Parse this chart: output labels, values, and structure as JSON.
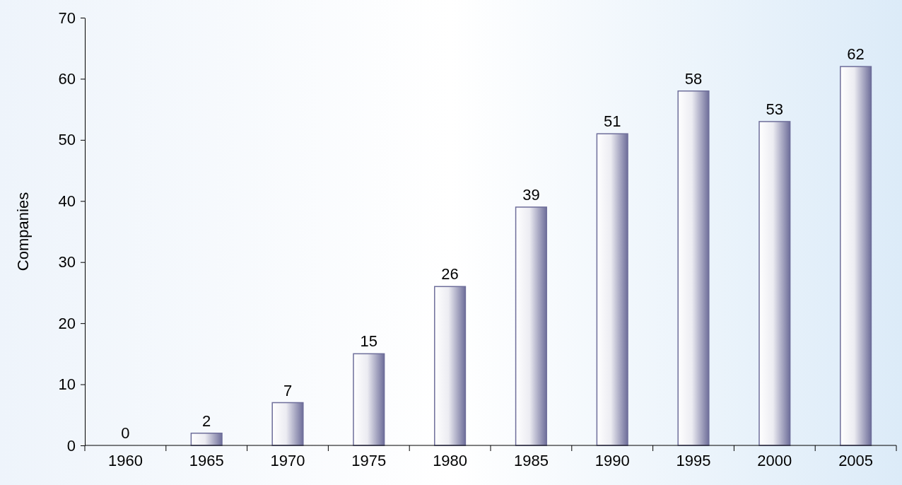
{
  "chart_data": {
    "type": "bar",
    "ylabel": "Companies",
    "categories": [
      "1960",
      "1965",
      "1970",
      "1975",
      "1980",
      "1985",
      "1990",
      "1995",
      "2000",
      "2005"
    ],
    "values": [
      0,
      2,
      7,
      15,
      26,
      39,
      51,
      58,
      53,
      62
    ],
    "color": "#6e6e9a",
    "ylim": [
      0,
      70
    ],
    "yticks": [
      0,
      10,
      20,
      30,
      40,
      50,
      60,
      70
    ],
    "data_labels": true,
    "grid": false
  }
}
